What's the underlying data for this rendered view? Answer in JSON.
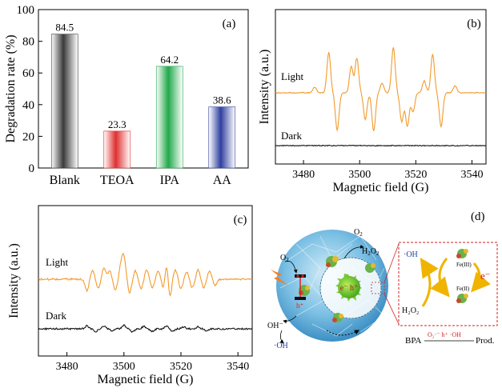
{
  "chart_data": [
    {
      "panel": "(a)",
      "type": "bar",
      "categories": [
        "Blank",
        "TEOA",
        "IPA",
        "AA"
      ],
      "values": [
        84.5,
        23.3,
        64.2,
        38.6
      ],
      "value_labels": [
        "84.5",
        "23.3",
        "64.2",
        "38.6"
      ],
      "colors": [
        "#3a3a3a",
        "#e03030",
        "#22a84a",
        "#2f3f9f"
      ],
      "xlabel": "",
      "ylabel": "Degradation rate (%)",
      "ylim": [
        0,
        100
      ],
      "yticks": [
        0,
        20,
        40,
        60,
        80,
        100
      ],
      "grid": false
    },
    {
      "panel": "(b)",
      "type": "line",
      "xlabel": "Magnetic field (G)",
      "ylabel": "Intensity (a.u.)",
      "xlim": [
        3470,
        3545
      ],
      "xticks": [
        3480,
        3500,
        3520,
        3540
      ],
      "series": [
        {
          "name": "Light",
          "color": "#f39a2c",
          "baseline": 0.5,
          "peaks": [
            [
              3484,
              0.12
            ],
            [
              3489,
              0.85
            ],
            [
              3492,
              -0.78
            ],
            [
              3497,
              0.55
            ],
            [
              3499,
              0.72
            ],
            [
              3502,
              -0.55
            ],
            [
              3505,
              -0.8
            ],
            [
              3508,
              0.2
            ],
            [
              3512,
              0.95
            ],
            [
              3515,
              -0.6
            ],
            [
              3517,
              -0.7
            ],
            [
              3519,
              -0.4
            ],
            [
              3523,
              0.25
            ],
            [
              3526,
              0.8
            ],
            [
              3529,
              -0.7
            ],
            [
              3534,
              0.15
            ]
          ]
        },
        {
          "name": "Dark",
          "color": "#111111",
          "baseline": 0.0,
          "peaks": []
        }
      ]
    },
    {
      "panel": "(c)",
      "type": "line",
      "xlabel": "Magnetic field (G)",
      "ylabel": "Intensity (a.u.)",
      "xlim": [
        3470,
        3545
      ],
      "xticks": [
        3480,
        3500,
        3520,
        3540
      ],
      "series": [
        {
          "name": "Light",
          "color": "#f39a2c",
          "baseline": 0.55,
          "peaks": [
            [
              3487,
              -0.55
            ],
            [
              3489,
              0.45
            ],
            [
              3491,
              -0.45
            ],
            [
              3493,
              0.55
            ],
            [
              3495,
              0.4
            ],
            [
              3497,
              -0.5
            ],
            [
              3499,
              0.65
            ],
            [
              3500,
              0.95
            ],
            [
              3502,
              -0.65
            ],
            [
              3504,
              0.4
            ],
            [
              3506,
              -0.45
            ],
            [
              3508,
              0.45
            ],
            [
              3510,
              -0.4
            ],
            [
              3512,
              0.4
            ],
            [
              3514,
              -0.55
            ],
            [
              3515,
              1.0
            ],
            [
              3516,
              -1.0
            ],
            [
              3518,
              0.45
            ],
            [
              3520,
              -0.45
            ],
            [
              3522,
              0.35
            ],
            [
              3524,
              -0.4
            ],
            [
              3526,
              0.45
            ],
            [
              3528,
              -0.4
            ],
            [
              3530,
              0.4
            ],
            [
              3532,
              -0.3
            ]
          ]
        },
        {
          "name": "Dark",
          "color": "#111111",
          "baseline": 0.0,
          "peaks": [
            [
              3487,
              0.3
            ],
            [
              3490,
              -0.3
            ],
            [
              3493,
              0.25
            ],
            [
              3496,
              -0.25
            ],
            [
              3500,
              0.35
            ],
            [
              3503,
              -0.3
            ],
            [
              3507,
              0.25
            ],
            [
              3510,
              -0.25
            ],
            [
              3515,
              0.3
            ],
            [
              3517,
              -0.3
            ],
            [
              3521,
              0.2
            ],
            [
              3526,
              0.2
            ],
            [
              3529,
              -0.2
            ]
          ]
        }
      ]
    }
  ],
  "panel_d": {
    "label": "(d)",
    "o2": "O",
    "o2_sub": "2",
    "h2o2": "H",
    "h2o2_sub2": "2",
    "h2o2_o": "O",
    "h2o2_sub2b": "2",
    "eh": "e⁻ h⁺",
    "o2_left": "O",
    "o2_left_sub": "2",
    "oh_minus": "OH⁻",
    "oh_radical": "·OH",
    "h_plus": "h⁺",
    "inset_oh": "·OH",
    "inset_h2o2": "H₂O₂",
    "fe3": "Fe(III)",
    "fe2": "Fe(II)",
    "electron": "e⁻",
    "bpa": "BPA",
    "reagents": "O₂·⁻  h⁺ ·OH",
    "prod": "Prod."
  }
}
